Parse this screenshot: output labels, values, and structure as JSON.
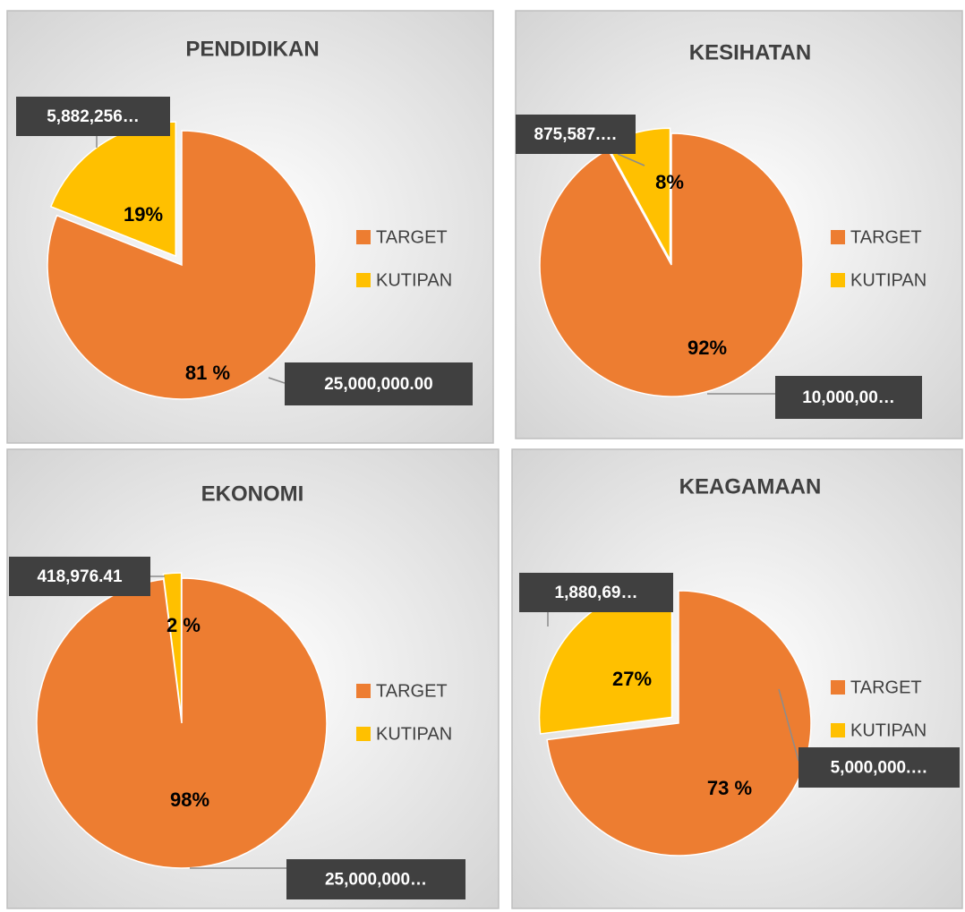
{
  "chart_data": [
    {
      "type": "pie",
      "title": "PENDIDIKAN",
      "categories": [
        "TARGET",
        "KUTIPAN"
      ],
      "values": [
        81,
        19
      ],
      "value_labels": [
        "81 %",
        "19%"
      ],
      "amount_labels": [
        "25,000,000.00",
        "5,882,256…"
      ],
      "colors": [
        "#ed7d31",
        "#ffc000"
      ],
      "legend": "right"
    },
    {
      "type": "pie",
      "title": "KESIHATAN",
      "categories": [
        "TARGET",
        "KUTIPAN"
      ],
      "values": [
        92,
        8
      ],
      "value_labels": [
        "92%",
        "8%"
      ],
      "amount_labels": [
        "10,000,00…",
        "875,587.…"
      ],
      "colors": [
        "#ed7d31",
        "#ffc000"
      ],
      "legend": "right"
    },
    {
      "type": "pie",
      "title": "EKONOMI",
      "categories": [
        "TARGET",
        "KUTIPAN"
      ],
      "values": [
        98,
        2
      ],
      "value_labels": [
        "98%",
        "2 %"
      ],
      "amount_labels": [
        "25,000,000…",
        "418,976.41"
      ],
      "colors": [
        "#ed7d31",
        "#ffc000"
      ],
      "legend": "right"
    },
    {
      "type": "pie",
      "title": "KEAGAMAAN",
      "categories": [
        "TARGET",
        "KUTIPAN"
      ],
      "values": [
        73,
        27
      ],
      "value_labels": [
        "73 %",
        "27%"
      ],
      "amount_labels": [
        "5,000,000.…",
        "1,880,69…"
      ],
      "colors": [
        "#ed7d31",
        "#ffc000"
      ],
      "legend": "right"
    }
  ]
}
